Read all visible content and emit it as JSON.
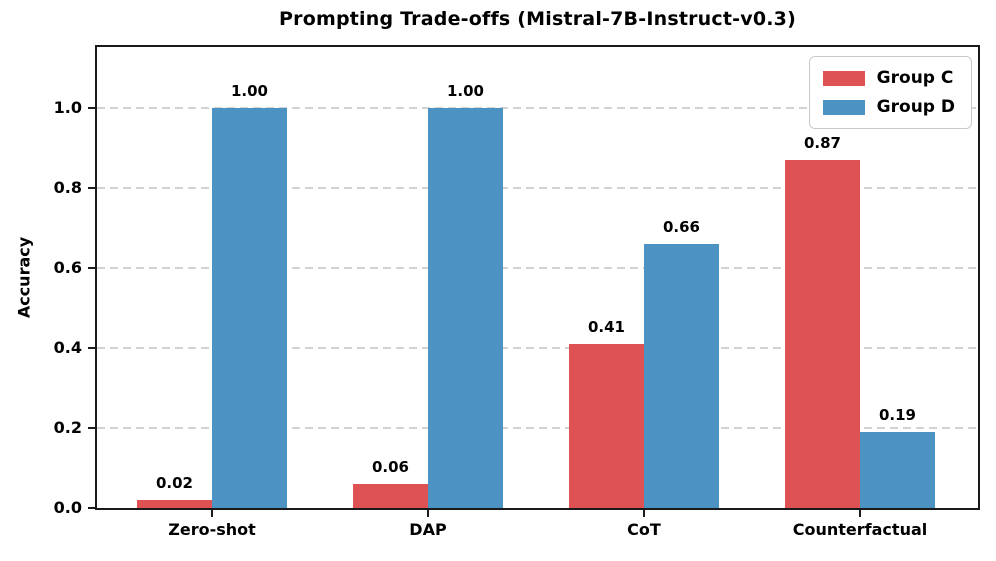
{
  "chart_data": {
    "type": "bar",
    "title": "Prompting Trade-offs (Mistral-7B-Instruct-v0.3)",
    "xlabel": "",
    "ylabel": "Accuracy",
    "categories": [
      "Zero-shot",
      "DAP",
      "CoT",
      "Counterfactual"
    ],
    "series": [
      {
        "name": "Group C",
        "color": "#de5253",
        "values": [
          0.02,
          0.06,
          0.41,
          0.87
        ]
      },
      {
        "name": "Group D",
        "color": "#4c92c3",
        "values": [
          1.0,
          1.0,
          0.66,
          0.19
        ]
      }
    ],
    "value_labels": [
      [
        "0.02",
        "0.06",
        "0.41",
        "0.87"
      ],
      [
        "1.00",
        "1.00",
        "0.66",
        "0.19"
      ]
    ],
    "yticks": [
      "0.0",
      "0.2",
      "0.4",
      "0.6",
      "0.8",
      "1.0"
    ],
    "ylim": [
      0,
      1.1525
    ],
    "grid": "horizontal-dashed",
    "legend_position": "upper right",
    "colors": {
      "group_c": "#de5253",
      "group_d": "#4c92c3",
      "gridline": "#d2d2d2",
      "spine": "#1a1a1a",
      "text": "#000000"
    }
  }
}
